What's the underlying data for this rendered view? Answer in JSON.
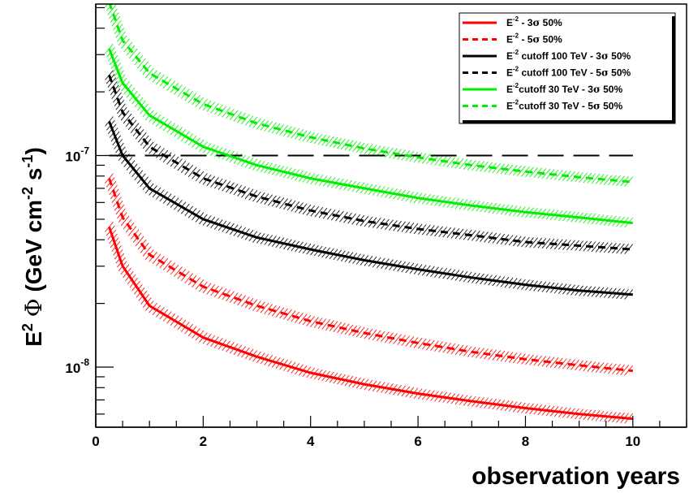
{
  "chart_data": {
    "type": "line",
    "title": "",
    "xlabel": "observation years",
    "ylabel": {
      "base": "E",
      "exp": "2",
      "phi": "Φ",
      "open": "(GeV cm",
      "exp2": "-2",
      "mid": " s",
      "exp3": "-1",
      "close": ")"
    },
    "xlim": [
      0,
      11
    ],
    "ylim": [
      5.2e-09,
      5.2e-07
    ],
    "log_y": true,
    "x_ticks": [
      0,
      2,
      4,
      6,
      8,
      10
    ],
    "x_tick_labels": [
      "0",
      "2",
      "4",
      "6",
      "8",
      "10"
    ],
    "y_ticks": [
      {
        "base": "10",
        "exp": "-7",
        "value": 1e-07
      },
      {
        "base": "10",
        "exp": "-8",
        "value": 1e-08
      }
    ],
    "grid": false,
    "reference_line": {
      "y": 1e-07,
      "style": "dashed",
      "color": "#000000",
      "x_range": [
        0.25,
        10
      ]
    },
    "legend": {
      "position": "top-right",
      "entries": [
        {
          "prefix": "E",
          "exp": "-2",
          "pre_sigma": " - 3",
          "sigma": "σ",
          "post": " 50%"
        },
        {
          "prefix": "E",
          "exp": "-2",
          "pre_sigma": " - 5",
          "sigma": "σ",
          "post": " 50%"
        },
        {
          "prefix": "E",
          "exp": "-2",
          "pre_sigma": " cutoff 100 TeV - 3",
          "sigma": "σ",
          "post": " 50%"
        },
        {
          "prefix": "E",
          "exp": "-2",
          "pre_sigma": " cutoff 100 TeV - 5",
          "sigma": "σ",
          "post": " 50%"
        },
        {
          "prefix": "E",
          "exp": "-2",
          "pre_sigma": "cutoff 30 TeV - 3",
          "sigma": "σ",
          "post": " 50%"
        },
        {
          "prefix": "E",
          "exp": "-2",
          "pre_sigma": "cutoff 30 TeV - 5",
          "sigma": "σ",
          "post": " 50%"
        }
      ]
    },
    "x": [
      0.25,
      0.5,
      1,
      2,
      3,
      4,
      5,
      6,
      7,
      8,
      9,
      10
    ],
    "series": [
      {
        "color": "#ff0000",
        "dash": "solid",
        "values": [
          4.6e-08,
          3e-08,
          1.95e-08,
          1.38e-08,
          1.12e-08,
          9.4e-09,
          8.3e-09,
          7.5e-09,
          6.9e-09,
          6.4e-09,
          6e-09,
          5.7e-09
        ]
      },
      {
        "color": "#ff0000",
        "dash": "dashed",
        "values": [
          7.8e-08,
          5.1e-08,
          3.4e-08,
          2.4e-08,
          1.95e-08,
          1.65e-08,
          1.45e-08,
          1.3e-08,
          1.18e-08,
          1.09e-08,
          1.02e-08,
          9.6e-09
        ]
      },
      {
        "color": "#000000",
        "dash": "solid",
        "values": [
          1.45e-07,
          1e-07,
          7e-08,
          5e-08,
          4.1e-08,
          3.6e-08,
          3.2e-08,
          2.9e-08,
          2.65e-08,
          2.45e-08,
          2.3e-08,
          2.2e-08
        ]
      },
      {
        "color": "#000000",
        "dash": "dashed",
        "values": [
          2.4e-07,
          1.6e-07,
          1.1e-07,
          7.8e-08,
          6.4e-08,
          5.5e-08,
          4.9e-08,
          4.5e-08,
          4.2e-08,
          3.9e-08,
          3.75e-08,
          3.6e-08
        ]
      },
      {
        "color": "#00ee00",
        "dash": "solid",
        "values": [
          3.2e-07,
          2.2e-07,
          1.55e-07,
          1.1e-07,
          9e-08,
          7.8e-08,
          7e-08,
          6.3e-08,
          5.8e-08,
          5.4e-08,
          5.1e-08,
          4.8e-08
        ]
      },
      {
        "color": "#00ee00",
        "dash": "dashed",
        "values": [
          5.3e-07,
          3.5e-07,
          2.45e-07,
          1.75e-07,
          1.42e-07,
          1.22e-07,
          1.08e-07,
          9.8e-08,
          9e-08,
          8.4e-08,
          7.9e-08,
          7.5e-08
        ]
      }
    ]
  }
}
